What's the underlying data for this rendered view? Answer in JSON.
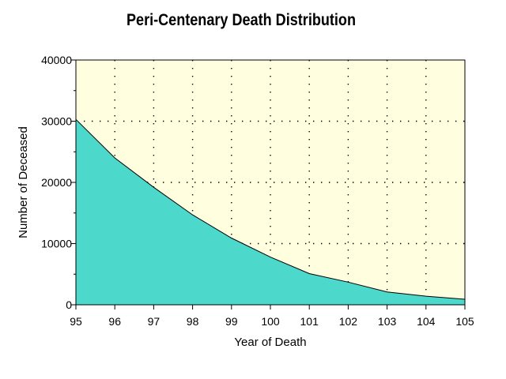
{
  "chart_data": {
    "type": "area",
    "title": "Peri-Centenary Death Distribution",
    "xlabel": "Year of Death",
    "ylabel": "Number of Deceased",
    "x": [
      95,
      96,
      97,
      98,
      99,
      100,
      101,
      102,
      103,
      104,
      105
    ],
    "x_tick_labels": [
      "95",
      "96",
      "97",
      "98",
      "99",
      "100",
      "101",
      "102",
      "103",
      "104",
      "105"
    ],
    "y": [
      30300,
      24000,
      19200,
      14700,
      10900,
      7800,
      5100,
      3700,
      2100,
      1400,
      900
    ],
    "y_ticks": [
      0,
      10000,
      20000,
      30000,
      40000
    ],
    "y_tick_labels": [
      "0",
      "10000",
      "20000",
      "30000",
      "40000"
    ],
    "xlim": [
      95,
      105
    ],
    "ylim": [
      0,
      40000
    ],
    "grid": true,
    "colors": {
      "area_fill": "#4dd8cc",
      "plot_background": "#ffffe0",
      "line": "#000000"
    }
  }
}
